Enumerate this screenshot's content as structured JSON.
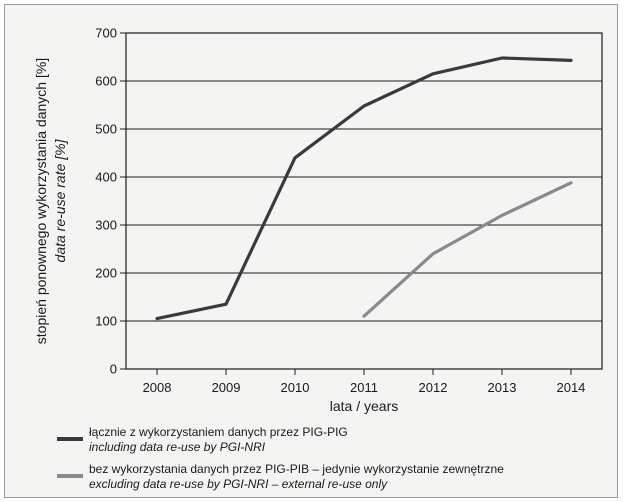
{
  "chart_data": {
    "type": "line",
    "x": [
      2008,
      2009,
      2010,
      2011,
      2012,
      2013,
      2014
    ],
    "xticks": [
      "2008",
      "2009",
      "2010",
      "2011",
      "2012",
      "2013",
      "2014"
    ],
    "yticks": [
      "0",
      "100",
      "200",
      "300",
      "400",
      "500",
      "600",
      "700"
    ],
    "xlim": [
      2007.55,
      2014.45
    ],
    "ylim": [
      0,
      700
    ],
    "grid": "horizontal",
    "xlabel": "lata / years",
    "ylabel": "stopień ponownego wykorzystania danych [%]",
    "ylabel_en": "data re-use rate [%]",
    "series": [
      {
        "name": "łącznie z wykorzystaniem danych przez PIG-PIG",
        "name_en": "including data re-use by PGI-NRI",
        "color": "#3a3a3a",
        "x": [
          2008,
          2009,
          2010,
          2011,
          2012,
          2013,
          2014
        ],
        "values": [
          105,
          135,
          440,
          548,
          615,
          648,
          643
        ]
      },
      {
        "name": "bez wykorzystania danych przez PIG-PIB – jedynie wykorzystanie zewnętrzne",
        "name_en": "excluding data re-use by PGI-NRI – external re-use only",
        "color": "#8a8a8a",
        "x": [
          2011,
          2012,
          2013,
          2014
        ],
        "values": [
          110,
          240,
          320,
          388
        ]
      }
    ]
  }
}
